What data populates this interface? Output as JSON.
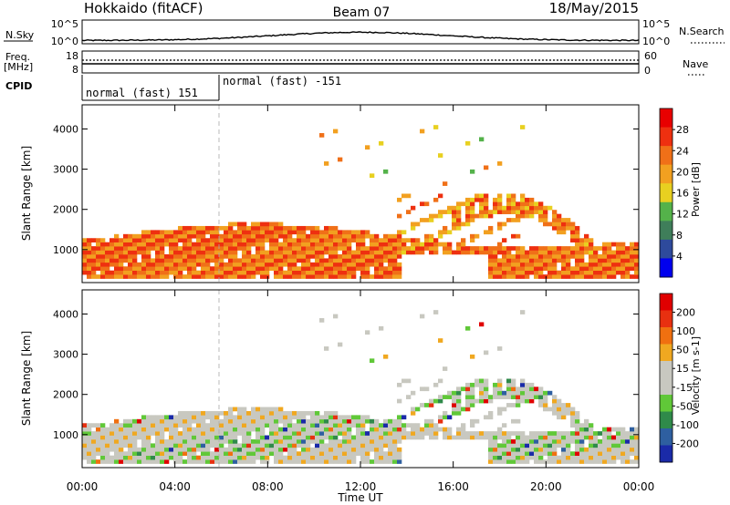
{
  "header": {
    "left": "Hokkaido (fitACF)",
    "center": "Beam 07",
    "right": "18/May/2015"
  },
  "top_labels": {
    "nsky": "N.Sky",
    "freq": "Freq.",
    "freq_unit": "[MHz]",
    "cpid": "CPID",
    "nsearch": "N.Search",
    "nave": "Nave",
    "sky_ticks": [
      "10^5",
      "10^0"
    ],
    "freq_ticks": [
      "18",
      "8"
    ],
    "nsearch_ticks": [
      "10^5",
      "10^0"
    ],
    "nave_ticks": [
      "60",
      "0"
    ]
  },
  "cpid_segments": [
    {
      "start": "00:00",
      "end": "06:00",
      "label": "normal (fast) 151"
    },
    {
      "start": "06:00",
      "end": "24:00",
      "label": "normal (fast) -151"
    }
  ],
  "colors": {
    "power_scale": [
      "#0000ee",
      "#2e4a9c",
      "#3f7e5a",
      "#54b24a",
      "#e8d020",
      "#f2a020",
      "#f07018",
      "#ee3010",
      "#e80000"
    ],
    "velocity_scale": [
      "#1a2aa8",
      "#2e5fa0",
      "#2f8a4a",
      "#60c838",
      "#c8c8c0",
      "#c8c8c0",
      "#f0a820",
      "#f07010",
      "#e83010",
      "#e00000"
    ]
  },
  "chart_data": [
    {
      "type": "heatmap",
      "title": "",
      "ylabel": "Slant Range [km]",
      "xlabel": "",
      "xlim": [
        "00:00",
        "24:00"
      ],
      "ylim": [
        180,
        4600
      ],
      "x_ticks": [
        "00:00",
        "04:00",
        "08:00",
        "12:00",
        "16:00",
        "20:00",
        "00:00"
      ],
      "y_ticks": [
        "1000",
        "2000",
        "3000",
        "4000"
      ],
      "colorbar": {
        "label": "Power [dB]",
        "ticks": [
          "28",
          "24",
          "20",
          "16",
          "12",
          "8",
          "4"
        ],
        "range": [
          0,
          30
        ]
      },
      "grid": false
    },
    {
      "type": "heatmap",
      "title": "",
      "ylabel": "Slant Range [km]",
      "xlabel": "Time UT",
      "xlim": [
        "00:00",
        "24:00"
      ],
      "ylim": [
        180,
        4600
      ],
      "x_ticks": [
        "00:00",
        "04:00",
        "08:00",
        "12:00",
        "16:00",
        "20:00",
        "00:00"
      ],
      "y_ticks": [
        "1000",
        "2000",
        "3000",
        "4000"
      ],
      "colorbar": {
        "label": "Velocity [m s-1]",
        "ticks": [
          "200",
          "100",
          "50",
          "15",
          "-15",
          "-50",
          "-100",
          "-200"
        ],
        "range": [
          -250,
          250
        ]
      },
      "grid": false
    }
  ]
}
